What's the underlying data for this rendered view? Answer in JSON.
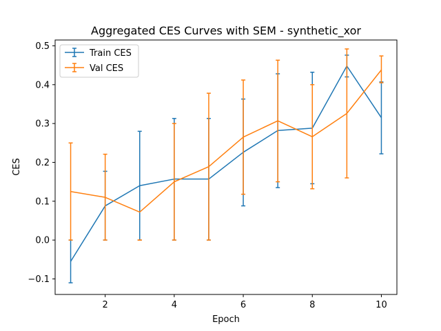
{
  "chart_data": {
    "type": "line",
    "title": "Aggregated CES Curves with SEM - synthetic_xor",
    "xlabel": "Epoch",
    "ylabel": "CES",
    "xlim": [
      0.55,
      10.45
    ],
    "ylim": [
      -0.14,
      0.515
    ],
    "x_ticks": [
      2,
      4,
      6,
      8,
      10
    ],
    "x_tick_labels": [
      "2",
      "4",
      "6",
      "8",
      "10"
    ],
    "y_ticks": [
      -0.1,
      0.0,
      0.1,
      0.2,
      0.3,
      0.4,
      0.5
    ],
    "y_tick_labels": [
      "−0.1",
      "0.0",
      "0.1",
      "0.2",
      "0.3",
      "0.4",
      "0.5"
    ],
    "x": [
      1,
      2,
      3,
      4,
      5,
      6,
      7,
      8,
      9,
      10
    ],
    "legend_position": "upper-left",
    "grid": false,
    "series": [
      {
        "name": "Train CES",
        "color": "#1f77b4",
        "values": [
          -0.055,
          0.088,
          0.14,
          0.157,
          0.157,
          0.226,
          0.282,
          0.288,
          0.448,
          0.315
        ],
        "err_low": [
          -0.11,
          0.0,
          0.0,
          0.0,
          0.0,
          0.088,
          0.135,
          0.145,
          0.42,
          0.222
        ],
        "err_high": [
          0.0,
          0.177,
          0.28,
          0.313,
          0.313,
          0.363,
          0.428,
          0.432,
          0.476,
          0.407
        ]
      },
      {
        "name": "Val CES",
        "color": "#ff7f0e",
        "values": [
          0.125,
          0.11,
          0.072,
          0.15,
          0.189,
          0.265,
          0.307,
          0.266,
          0.326,
          0.438
        ],
        "err_low": [
          0.0,
          0.0,
          0.0,
          0.0,
          0.0,
          0.118,
          0.15,
          0.132,
          0.16,
          0.405
        ],
        "err_high": [
          0.25,
          0.221,
          0.0,
          0.3,
          0.378,
          0.412,
          0.463,
          0.4,
          0.492,
          0.474
        ]
      }
    ]
  }
}
